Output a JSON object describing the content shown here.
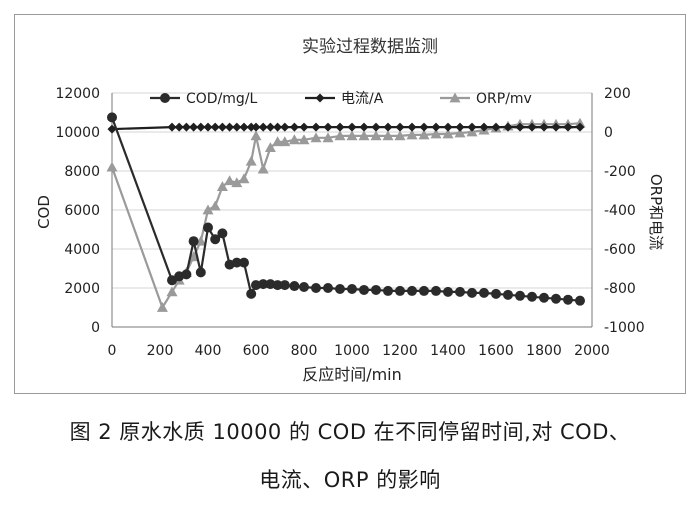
{
  "chart_data": {
    "type": "line",
    "title": "实验过程数据监测",
    "xlabel": "反应时间/min",
    "ylabel": "COD",
    "y2label": "ORP和电流",
    "xlim": [
      0,
      2000
    ],
    "ylim": [
      0,
      12000
    ],
    "y2lim": [
      -1000,
      200
    ],
    "x_ticks": [
      0,
      200,
      400,
      600,
      800,
      1000,
      1200,
      1400,
      1600,
      1800,
      2000
    ],
    "y_ticks": [
      0,
      2000,
      4000,
      6000,
      8000,
      10000,
      12000
    ],
    "y2_ticks": [
      200,
      0,
      -200,
      -400,
      -600,
      -800,
      -1000
    ],
    "grid": true,
    "legend_position": "top",
    "series": [
      {
        "name": "COD/mg/L",
        "axis": "left",
        "marker": "circle",
        "color": "#2b2b2b",
        "x": [
          0,
          250,
          280,
          310,
          340,
          370,
          400,
          430,
          460,
          490,
          520,
          550,
          580,
          600,
          630,
          660,
          690,
          720,
          760,
          800,
          850,
          900,
          950,
          1000,
          1050,
          1100,
          1150,
          1200,
          1250,
          1300,
          1350,
          1400,
          1450,
          1500,
          1550,
          1600,
          1650,
          1700,
          1750,
          1800,
          1850,
          1900,
          1950
        ],
        "y": [
          10750,
          2400,
          2600,
          2700,
          4400,
          2800,
          5100,
          4500,
          4800,
          3200,
          3300,
          3300,
          1700,
          2150,
          2200,
          2200,
          2150,
          2150,
          2100,
          2050,
          2000,
          2000,
          1950,
          1950,
          1900,
          1900,
          1850,
          1850,
          1850,
          1850,
          1850,
          1800,
          1800,
          1750,
          1750,
          1700,
          1650,
          1600,
          1550,
          1500,
          1450,
          1400,
          1350
        ]
      },
      {
        "name": "电流/A",
        "axis": "right",
        "marker": "diamond",
        "color": "#1f1f1f",
        "x": [
          0,
          250,
          280,
          310,
          340,
          370,
          400,
          430,
          460,
          490,
          520,
          550,
          580,
          600,
          630,
          660,
          690,
          720,
          760,
          800,
          850,
          900,
          950,
          1000,
          1050,
          1100,
          1150,
          1200,
          1250,
          1300,
          1350,
          1400,
          1450,
          1500,
          1550,
          1600,
          1650,
          1700,
          1750,
          1800,
          1850,
          1900,
          1950
        ],
        "y": [
          15,
          25,
          25,
          25,
          25,
          25,
          25,
          25,
          25,
          25,
          25,
          25,
          25,
          25,
          25,
          25,
          25,
          25,
          25,
          25,
          25,
          25,
          25,
          25,
          25,
          25,
          25,
          25,
          25,
          25,
          25,
          25,
          25,
          25,
          25,
          25,
          25,
          25,
          25,
          25,
          25,
          25,
          25
        ]
      },
      {
        "name": "ORP/mv",
        "axis": "right",
        "marker": "triangle",
        "color": "#9a9a9a",
        "x": [
          0,
          210,
          250,
          280,
          310,
          340,
          370,
          400,
          430,
          460,
          490,
          520,
          550,
          580,
          600,
          630,
          660,
          690,
          720,
          760,
          800,
          850,
          900,
          950,
          1000,
          1050,
          1100,
          1150,
          1200,
          1250,
          1300,
          1350,
          1400,
          1450,
          1500,
          1550,
          1600,
          1650,
          1700,
          1750,
          1800,
          1850,
          1900,
          1950
        ],
        "y": [
          -180,
          -900,
          -820,
          -760,
          -720,
          -640,
          -560,
          -400,
          -380,
          -280,
          -250,
          -260,
          -240,
          -150,
          -20,
          -190,
          -80,
          -50,
          -50,
          -40,
          -40,
          -30,
          -30,
          -20,
          -20,
          -20,
          -20,
          -20,
          -20,
          -15,
          -15,
          -10,
          -10,
          -5,
          0,
          10,
          20,
          30,
          40,
          40,
          40,
          40,
          40,
          45
        ]
      }
    ]
  },
  "caption": {
    "line1": "图 2   原水水质 10000 的 COD 在不同停留时间,对 COD、",
    "line2": "电流、ORP 的影响"
  }
}
